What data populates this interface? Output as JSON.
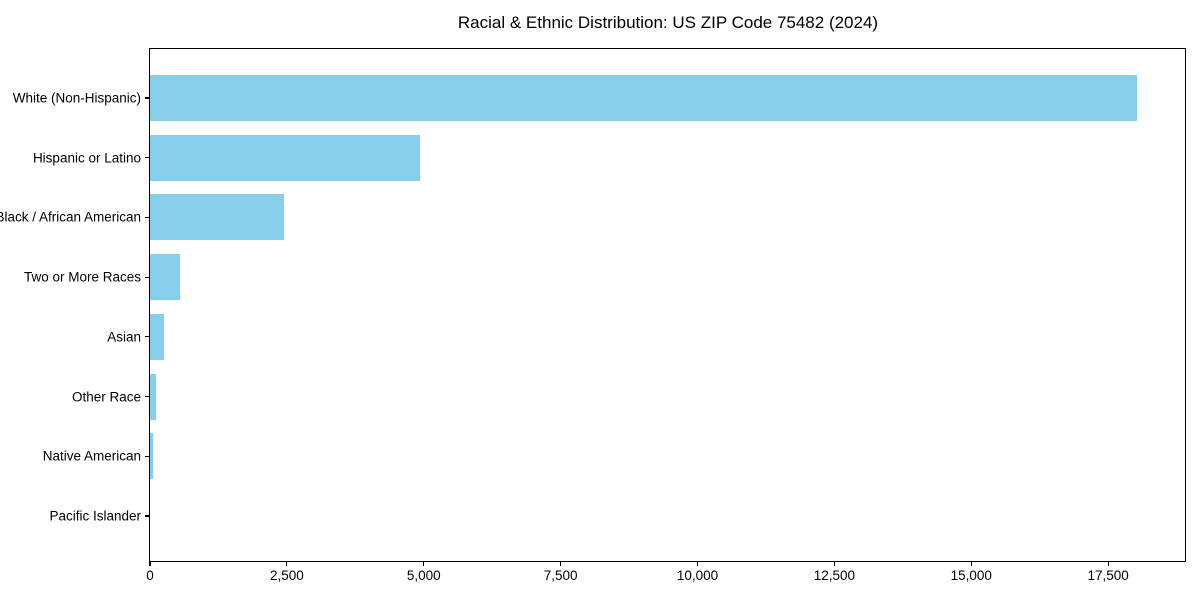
{
  "chart_data": {
    "type": "bar",
    "orientation": "horizontal",
    "title": "Racial & Ethnic Distribution: US ZIP Code 75482 (2024)",
    "categories": [
      "White (Non-Hispanic)",
      "Hispanic or Latino",
      "Black / African American",
      "Two or More Races",
      "Asian",
      "Other Race",
      "Native American",
      "Pacific Islander"
    ],
    "values": [
      18030,
      4930,
      2440,
      550,
      260,
      115,
      55,
      0
    ],
    "bar_color": "#87CEEB",
    "axis_color": "#000000",
    "background_color": "#ffffff",
    "xlabel": "",
    "ylabel": "",
    "xlim": [
      0,
      18940
    ],
    "x_ticks": {
      "values": [
        0,
        2500,
        5000,
        7500,
        10000,
        12500,
        15000,
        17500
      ],
      "labels": [
        "0",
        "2,500",
        "5,000",
        "7,500",
        "10,000",
        "12,500",
        "15,000",
        "17,500"
      ]
    },
    "grid": false,
    "legend": false
  }
}
